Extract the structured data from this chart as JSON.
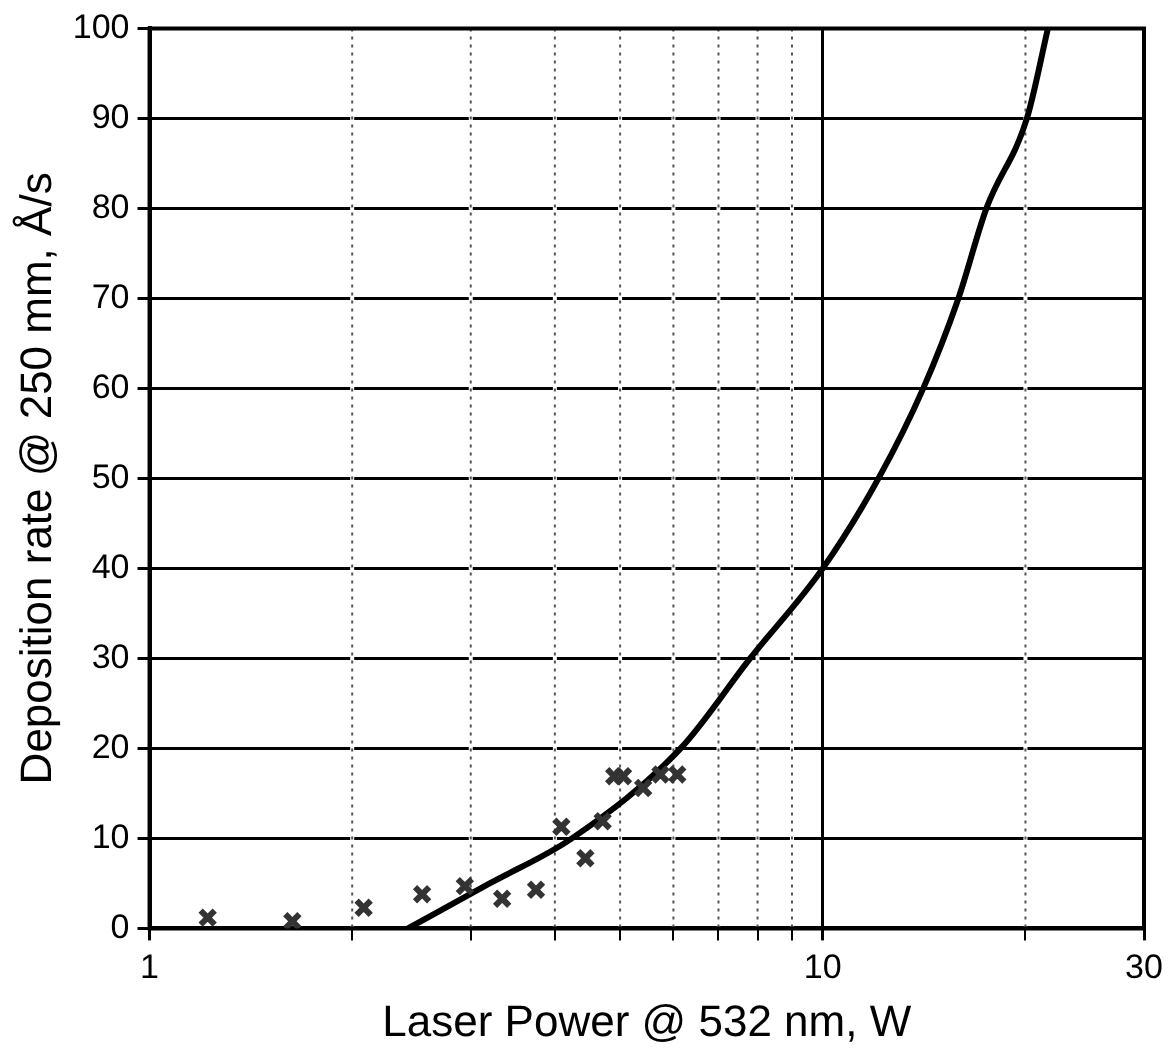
{
  "chart_data": {
    "type": "scatter",
    "xlabel": "Laser Power @ 532 nm, W",
    "ylabel": "Deposition rate @ 250 mm, Å/s",
    "log": "x",
    "grid": true,
    "legend": false,
    "marker": "cross",
    "xlim": [
      1,
      30
    ],
    "xticks": [
      1,
      {
        "value": 2,
        "label": null
      },
      {
        "value": 3,
        "label": null
      },
      {
        "value": 4,
        "label": null
      },
      {
        "value": 5,
        "label": null
      },
      {
        "value": 6,
        "label": null
      },
      {
        "value": 7,
        "label": null
      },
      {
        "value": 8,
        "label": null
      },
      {
        "value": 9,
        "label": null
      },
      10,
      {
        "value": 20,
        "label": null
      },
      30
    ],
    "ylim": [
      0,
      100
    ],
    "yticks": [
      0,
      10,
      20,
      30,
      40,
      50,
      60,
      70,
      80,
      90,
      100
    ],
    "series": [
      {
        "color": "#333333",
        "x": [
          1.22,
          1.63,
          2.08,
          2.54,
          2.94,
          3.34,
          3.75,
          4.09,
          4.44,
          4.71,
          4.9,
          5.05,
          5.41,
          5.74,
          6.08
        ],
        "values": [
          1.2,
          0.8,
          2.3,
          3.8,
          4.7,
          3.3,
          4.3,
          11.3,
          7.8,
          11.9,
          16.9,
          16.9,
          15.6,
          17.1,
          17.1
        ]
      },
      {
        "type": "line",
        "color": "#000000",
        "marker": "none",
        "x": [
          2.42,
          3.2,
          4.24,
          6.15,
          7.8,
          10,
          12.1,
          14.1,
          15.9,
          17.5,
          20.1,
          21.6
        ],
        "values": [
          0,
          5,
          10,
          20,
          30,
          40,
          50,
          60,
          70,
          80,
          90,
          100
        ]
      }
    ]
  }
}
